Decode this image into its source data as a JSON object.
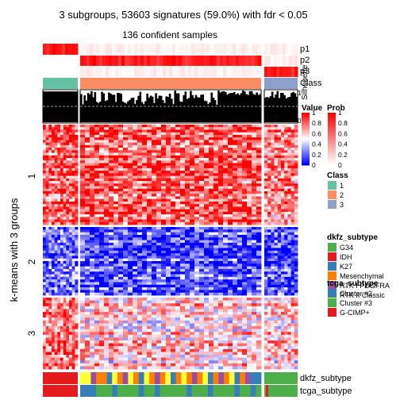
{
  "figure": {
    "title": "3 subgroups, 53603 signatures (59.0%) with fdr < 0.05",
    "subtitle": "136 confident samples",
    "row_title": "k-means with 3 groups"
  },
  "chart_data": {
    "type": "heatmap",
    "title": "3 subgroups, 53603 signatures (59.0%) with fdr < 0.05",
    "subtitle": "136 confident samples",
    "ylabel": "k-means with 3 groups",
    "row_groups": [
      {
        "label": "1",
        "relative_size": 0.43
      },
      {
        "label": "2",
        "relative_size": 0.29
      },
      {
        "label": "3",
        "relative_size": 0.28
      }
    ],
    "column_groups": [
      {
        "class": "1",
        "relative_size": 0.205
      },
      {
        "class": "2",
        "relative_size": 0.625
      },
      {
        "class": "3",
        "relative_size": 0.17
      }
    ],
    "row_group_dominant_value": {
      "1": "high",
      "2": "low",
      "3": "mixed"
    },
    "top_annotations": [
      "p1",
      "p2",
      "p3",
      "Class",
      "Silhouette"
    ],
    "bottom_annotations": [
      "dkfz_subtype",
      "tcga_subtype"
    ],
    "silhouette_axis": {
      "range": [
        0,
        1
      ],
      "tick_labels": [
        "0",
        "1"
      ],
      "cutoff": 0.5
    },
    "value_legend": {
      "title": "Value",
      "ticks": [
        {
          "value": 1,
          "label": "1"
        },
        {
          "value": 0.8,
          "label": "0.8"
        },
        {
          "value": 0.6,
          "label": "0.6"
        },
        {
          "value": 0.4,
          "label": "0.4"
        },
        {
          "value": 0.2,
          "label": "0.2"
        },
        {
          "value": 0,
          "label": "0"
        }
      ],
      "low_color": "#0000ff",
      "mid_color": "#ffffff",
      "high_color": "#ff0000"
    },
    "prob_legend": {
      "title": "Prob",
      "ticks": [
        {
          "value": 1,
          "label": "1"
        },
        {
          "value": 0.8,
          "label": "0.8"
        },
        {
          "value": 0.6,
          "label": "0.6"
        },
        {
          "value": 0.4,
          "label": "0.4"
        },
        {
          "value": 0.2,
          "label": "0.2"
        },
        {
          "value": 0,
          "label": "0"
        }
      ],
      "low_color": "#ffffff",
      "high_color": "#ff0000"
    },
    "class_legend": {
      "title": "Class",
      "items": [
        {
          "label": "1",
          "color": "#66c2a5"
        },
        {
          "label": "2",
          "color": "#fc8d62"
        },
        {
          "label": "3",
          "color": "#8da0cb"
        }
      ]
    },
    "dkfz_legend": {
      "title": "dkfz_subtype",
      "items": [
        {
          "label": "G34",
          "color": "#4daf4a"
        },
        {
          "label": "IDH",
          "color": "#e41a1c"
        },
        {
          "label": "K27",
          "color": "#377eb8"
        },
        {
          "label": "Mesenchymal",
          "color": "#ff7f00"
        },
        {
          "label": "RTK I PDGFRA",
          "color": "#984ea3"
        },
        {
          "label": "RTK II Classic",
          "color": "#ffff33"
        }
      ]
    },
    "tcga_legend": {
      "title": "tcga_subtype",
      "items": [
        {
          "label": "Cluster #2",
          "color": "#377eb8"
        },
        {
          "label": "Cluster #3",
          "color": "#4daf4a"
        },
        {
          "label": "G-CIMP+",
          "color": "#e41a1c"
        }
      ]
    }
  }
}
